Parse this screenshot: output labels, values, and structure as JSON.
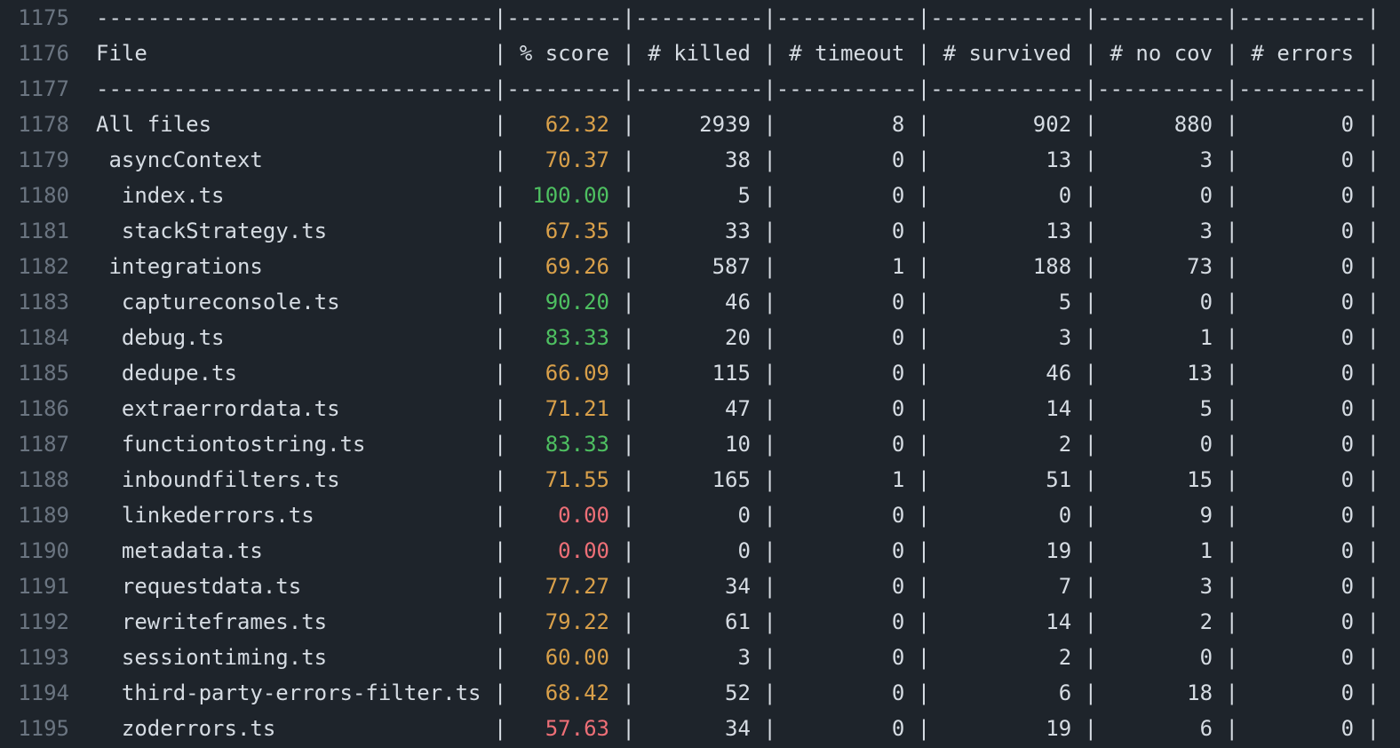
{
  "palette": {
    "background": "#1e242b",
    "default_text": "#d6dce3",
    "line_number": "#6b7581",
    "score_high": "#4ec061",
    "score_medium": "#d9a04a",
    "score_low": "#ee6f77"
  },
  "report": {
    "columns": [
      "File",
      "% score",
      "# killed",
      "# timeout",
      "# survived",
      "# no cov",
      "# errors"
    ],
    "lines": [
      {
        "number": 1175,
        "type": "separator"
      },
      {
        "number": 1176,
        "type": "header"
      },
      {
        "number": 1177,
        "type": "separator"
      },
      {
        "number": 1178,
        "type": "data",
        "indent": 0,
        "file": "All files",
        "score": "62.32",
        "score_level": "medium",
        "killed": 2939,
        "timeout": 8,
        "survived": 902,
        "no_cov": 880,
        "errors": 0
      },
      {
        "number": 1179,
        "type": "data",
        "indent": 1,
        "file": "asyncContext",
        "score": "70.37",
        "score_level": "medium",
        "killed": 38,
        "timeout": 0,
        "survived": 13,
        "no_cov": 3,
        "errors": 0
      },
      {
        "number": 1180,
        "type": "data",
        "indent": 2,
        "file": "index.ts",
        "score": "100.00",
        "score_level": "high",
        "killed": 5,
        "timeout": 0,
        "survived": 0,
        "no_cov": 0,
        "errors": 0
      },
      {
        "number": 1181,
        "type": "data",
        "indent": 2,
        "file": "stackStrategy.ts",
        "score": "67.35",
        "score_level": "medium",
        "killed": 33,
        "timeout": 0,
        "survived": 13,
        "no_cov": 3,
        "errors": 0
      },
      {
        "number": 1182,
        "type": "data",
        "indent": 1,
        "file": "integrations",
        "score": "69.26",
        "score_level": "medium",
        "killed": 587,
        "timeout": 1,
        "survived": 188,
        "no_cov": 73,
        "errors": 0
      },
      {
        "number": 1183,
        "type": "data",
        "indent": 2,
        "file": "captureconsole.ts",
        "score": "90.20",
        "score_level": "high",
        "killed": 46,
        "timeout": 0,
        "survived": 5,
        "no_cov": 0,
        "errors": 0
      },
      {
        "number": 1184,
        "type": "data",
        "indent": 2,
        "file": "debug.ts",
        "score": "83.33",
        "score_level": "high",
        "killed": 20,
        "timeout": 0,
        "survived": 3,
        "no_cov": 1,
        "errors": 0
      },
      {
        "number": 1185,
        "type": "data",
        "indent": 2,
        "file": "dedupe.ts",
        "score": "66.09",
        "score_level": "medium",
        "killed": 115,
        "timeout": 0,
        "survived": 46,
        "no_cov": 13,
        "errors": 0
      },
      {
        "number": 1186,
        "type": "data",
        "indent": 2,
        "file": "extraerrordata.ts",
        "score": "71.21",
        "score_level": "medium",
        "killed": 47,
        "timeout": 0,
        "survived": 14,
        "no_cov": 5,
        "errors": 0
      },
      {
        "number": 1187,
        "type": "data",
        "indent": 2,
        "file": "functiontostring.ts",
        "score": "83.33",
        "score_level": "high",
        "killed": 10,
        "timeout": 0,
        "survived": 2,
        "no_cov": 0,
        "errors": 0
      },
      {
        "number": 1188,
        "type": "data",
        "indent": 2,
        "file": "inboundfilters.ts",
        "score": "71.55",
        "score_level": "medium",
        "killed": 165,
        "timeout": 1,
        "survived": 51,
        "no_cov": 15,
        "errors": 0
      },
      {
        "number": 1189,
        "type": "data",
        "indent": 2,
        "file": "linkederrors.ts",
        "score": "0.00",
        "score_level": "low",
        "killed": 0,
        "timeout": 0,
        "survived": 0,
        "no_cov": 9,
        "errors": 0
      },
      {
        "number": 1190,
        "type": "data",
        "indent": 2,
        "file": "metadata.ts",
        "score": "0.00",
        "score_level": "low",
        "killed": 0,
        "timeout": 0,
        "survived": 19,
        "no_cov": 1,
        "errors": 0
      },
      {
        "number": 1191,
        "type": "data",
        "indent": 2,
        "file": "requestdata.ts",
        "score": "77.27",
        "score_level": "medium",
        "killed": 34,
        "timeout": 0,
        "survived": 7,
        "no_cov": 3,
        "errors": 0
      },
      {
        "number": 1192,
        "type": "data",
        "indent": 2,
        "file": "rewriteframes.ts",
        "score": "79.22",
        "score_level": "medium",
        "killed": 61,
        "timeout": 0,
        "survived": 14,
        "no_cov": 2,
        "errors": 0
      },
      {
        "number": 1193,
        "type": "data",
        "indent": 2,
        "file": "sessiontiming.ts",
        "score": "60.00",
        "score_level": "medium",
        "killed": 3,
        "timeout": 0,
        "survived": 2,
        "no_cov": 0,
        "errors": 0
      },
      {
        "number": 1194,
        "type": "data",
        "indent": 2,
        "file": "third-party-errors-filter.ts",
        "score": "68.42",
        "score_level": "medium",
        "killed": 52,
        "timeout": 0,
        "survived": 6,
        "no_cov": 18,
        "errors": 0
      },
      {
        "number": 1195,
        "type": "data",
        "indent": 2,
        "file": "zoderrors.ts",
        "score": "57.63",
        "score_level": "low",
        "killed": 34,
        "timeout": 0,
        "survived": 19,
        "no_cov": 6,
        "errors": 0
      }
    ]
  }
}
